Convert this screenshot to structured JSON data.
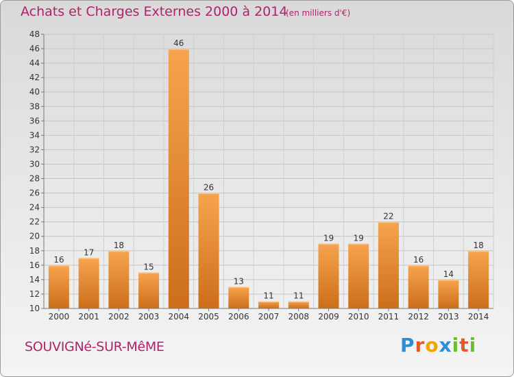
{
  "header": {
    "title": "Achats et Charges Externes 2000 à 2014",
    "subtitle": "(en milliers d'€)"
  },
  "footer": {
    "commune": "SOUVIGNé-SUR-MêME",
    "brand_letters": [
      "P",
      "r",
      "o",
      "x",
      "i",
      "t",
      "i"
    ],
    "brand_colors": [
      "#2a8fd6",
      "#e05a2a",
      "#f0a400",
      "#2a8fd6",
      "#6abf2e",
      "#e05a2a",
      "#6abf2e"
    ]
  },
  "colors": {
    "bar_light": "#f7a44e",
    "bar_dark": "#cc6e1a",
    "accent": "#b0226a"
  },
  "chart_data": {
    "type": "bar",
    "title": "Achats et Charges Externes 2000 à 2014",
    "subtitle": "(en milliers d'€)",
    "categories": [
      "2000",
      "2001",
      "2002",
      "2003",
      "2004",
      "2005",
      "2006",
      "2007",
      "2008",
      "2009",
      "2010",
      "2011",
      "2012",
      "2013",
      "2014"
    ],
    "values": [
      16,
      17,
      18,
      15,
      46,
      26,
      13,
      11,
      11,
      19,
      19,
      22,
      16,
      14,
      18
    ],
    "ylim": [
      10,
      48
    ],
    "yticks": [
      10,
      12,
      14,
      16,
      18,
      20,
      22,
      24,
      26,
      28,
      30,
      32,
      34,
      36,
      38,
      40,
      42,
      44,
      46,
      48
    ],
    "grid": true
  }
}
